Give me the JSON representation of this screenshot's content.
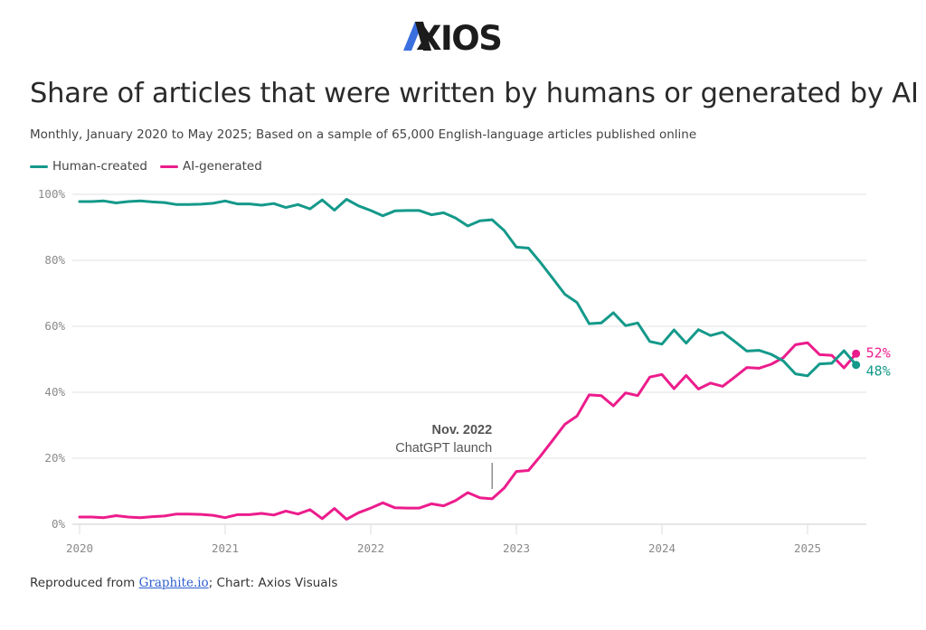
{
  "brand": {
    "name": "AXIOS",
    "accent": "#3b6fe0"
  },
  "header": {
    "title": "Share of articles that were written by humans or generated by AI",
    "subtitle": "Monthly, January 2020 to May 2025; Based on a sample of 65,000 English-language articles published online"
  },
  "legend": [
    {
      "label": "Human-created",
      "color": "#14998a"
    },
    {
      "label": "AI-generated",
      "color": "#ec1c8c"
    }
  ],
  "footer": {
    "prefix": "Reproduced from ",
    "link_text": "Graphite.io",
    "suffix": "; Chart: Axios Visuals"
  },
  "chart_data": {
    "type": "line",
    "title": "Share of articles that were written by humans or generated by AI",
    "xlabel": "",
    "ylabel": "",
    "x_start": "2020-01",
    "x_end": "2025-05",
    "x_ticks": [
      "2020",
      "2021",
      "2022",
      "2023",
      "2024",
      "2025"
    ],
    "y_ticks": [
      "0%",
      "20%",
      "40%",
      "60%",
      "80%",
      "100%"
    ],
    "ylim": [
      0,
      100
    ],
    "grid": true,
    "legend_position": "top-left",
    "series": [
      {
        "name": "Human-created",
        "color": "#14998a",
        "end_label": "48%",
        "values": [
          97.8,
          97.8,
          98.0,
          97.4,
          97.8,
          98.0,
          97.7,
          97.5,
          96.9,
          96.9,
          97.0,
          97.3,
          98.0,
          97.1,
          97.1,
          96.7,
          97.2,
          96.0,
          96.9,
          95.6,
          98.3,
          95.2,
          98.5,
          96.5,
          95.1,
          93.5,
          95.0,
          95.1,
          95.1,
          93.8,
          94.4,
          92.8,
          90.4,
          92.0,
          92.3,
          89.0,
          84.0,
          83.7,
          79.3,
          74.5,
          69.7,
          67.2,
          60.8,
          61.0,
          64.1,
          60.2,
          61.0,
          55.4,
          54.6,
          58.9,
          54.9,
          59.0,
          57.2,
          58.2,
          55.4,
          52.5,
          52.7,
          51.5,
          49.5,
          45.6,
          45.0,
          48.6,
          48.8,
          52.6,
          48.3
        ]
      },
      {
        "name": "AI-generated",
        "color": "#ec1c8c",
        "end_label": "52%",
        "values": [
          2.2,
          2.2,
          2.0,
          2.6,
          2.2,
          2.0,
          2.3,
          2.5,
          3.1,
          3.1,
          3.0,
          2.7,
          2.0,
          2.9,
          2.9,
          3.3,
          2.8,
          4.0,
          3.1,
          4.4,
          1.7,
          4.8,
          1.5,
          3.5,
          4.9,
          6.5,
          5.0,
          4.9,
          4.9,
          6.2,
          5.6,
          7.2,
          9.6,
          8.0,
          7.7,
          11.0,
          16.0,
          16.3,
          20.7,
          25.5,
          30.3,
          32.8,
          39.2,
          39.0,
          35.9,
          39.8,
          39.0,
          44.6,
          45.4,
          41.1,
          45.1,
          41.0,
          42.8,
          41.8,
          44.6,
          47.5,
          47.3,
          48.5,
          50.5,
          54.4,
          55.0,
          51.4,
          51.2,
          47.4,
          51.7
        ]
      }
    ],
    "annotations": [
      {
        "x": "2022-11",
        "title": "Nov. 2022",
        "text": "ChatGPT launch"
      }
    ]
  }
}
